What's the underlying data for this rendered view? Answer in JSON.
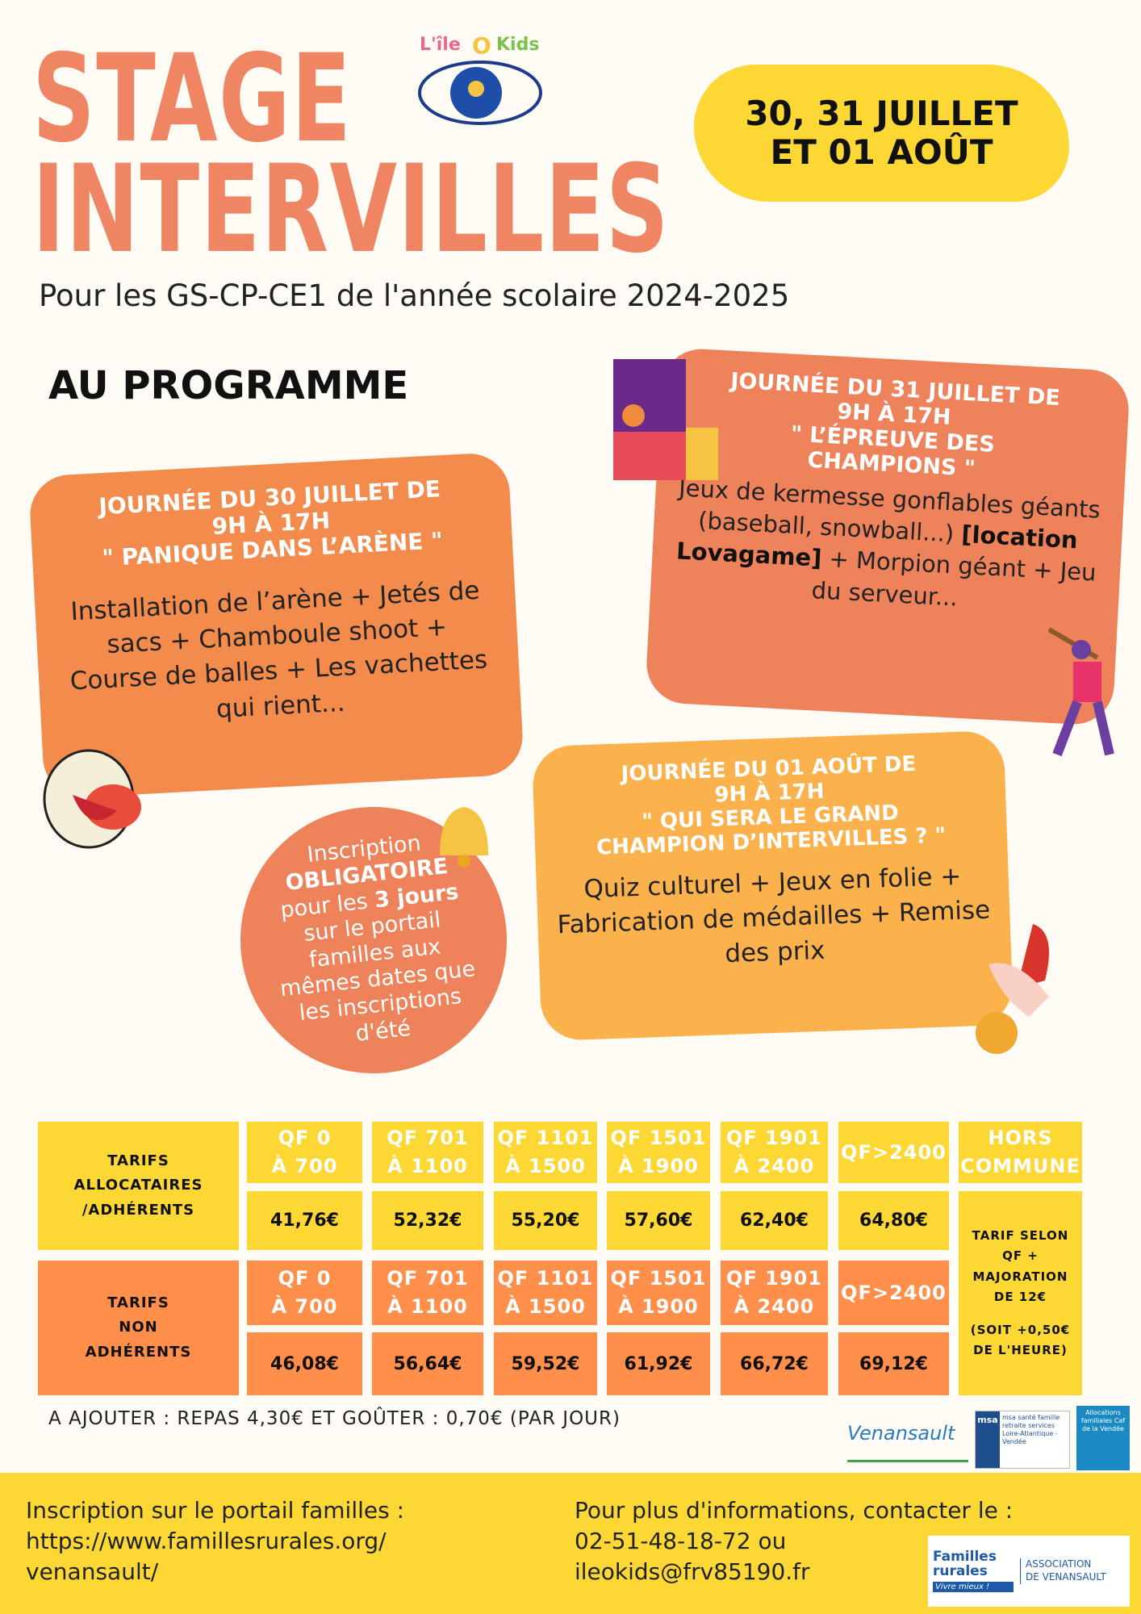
{
  "title": {
    "line1": "STAGE",
    "line2": "INTERVILLES"
  },
  "logo": {
    "text": "L'île O Kids"
  },
  "dates": {
    "line1": "30, 31 JUILLET",
    "line2": "ET 01 AOÛT"
  },
  "subtitle": "Pour les GS-CP-CE1 de l'année scolaire 2024-2025",
  "program_heading": "AU PROGRAMME",
  "days": [
    {
      "heading": [
        "JOURNÉE DU 30 JUILLET DE",
        "9H À 17H",
        "\" PANIQUE DANS L’ARÈNE \""
      ],
      "body": "Installation de l’arène + Jetés de sacs + Chamboule shoot + Course de balles + Les vachettes qui rient..."
    },
    {
      "heading": [
        "JOURNÉE DU 31 JUILLET DE",
        "9H À 17H",
        "\" L’ÉPREUVE DES",
        "CHAMPIONS \""
      ],
      "body_before": "Jeux de kermesse gonflables géants (baseball, snowball...)",
      "body_bold": "[location Lovagame]",
      "body_after": "+ Morpion géant + Jeu du serveur..."
    },
    {
      "heading": [
        "JOURNÉE DU 01 AOÛT DE",
        "9H À 17H",
        "\" QUI SERA LE GRAND",
        "CHAMPION D’INTERVILLES ?  \""
      ],
      "body": "Quiz culturel + Jeux en folie + Fabrication de médailles + Remise des prix"
    }
  ],
  "registration_note": {
    "t1": "Inscription",
    "t2": "OBLIGATOIRE",
    "t3": "pour les",
    "t4": "3 jours",
    "t5": "sur le portail familles aux mêmes dates que les inscriptions d'été"
  },
  "pricing": {
    "brackets": [
      [
        "QF 0",
        "À 700"
      ],
      [
        "QF 701",
        "À 1100"
      ],
      [
        "QF 1101",
        "À 1500"
      ],
      [
        "QF 1501",
        "À 1900"
      ],
      [
        "QF 1901",
        "À 2400"
      ],
      [
        "QF>2400"
      ]
    ],
    "rows": [
      {
        "label": [
          "TARIFS",
          "ALLOCATAIRES",
          "/ADHÉRENTS"
        ],
        "prices": [
          "41,76€",
          "52,32€",
          "55,20€",
          "57,60€",
          "62,40€",
          "64,80€"
        ]
      },
      {
        "label": [
          "TARIFS",
          "NON",
          "ADHÉRENTS"
        ],
        "prices": [
          "46,08€",
          "56,64€",
          "59,52€",
          "61,92€",
          "66,72€",
          "69,12€"
        ]
      }
    ],
    "outside": {
      "header": [
        "HORS",
        "COMMUNE"
      ],
      "text": [
        "TARIF SELON",
        "QF +",
        "MAJORATION",
        "DE 12€",
        "",
        "(SOIT +0,50€",
        "DE L'HEURE)"
      ]
    }
  },
  "note": "A AJOUTER  : REPAS 4,30€ ET GOÛTER : 0,70€  (PAR JOUR)",
  "partners": [
    "Venansault",
    "msa santé famille retraite services Loire-Atlantique - Vendée",
    "Allocations familiales Caf de la Vendée"
  ],
  "footer": {
    "left": [
      "Inscription sur le portail familles :",
      "https://www.famillesrurales.org/",
      "venansault/"
    ],
    "right": [
      "Pour plus d'informations, contacter le :",
      "02-51-48-18-72 ou",
      "ileokids@frv85190.fr"
    ],
    "logo": {
      "name": "Familles rurales",
      "tagline": "Vivre mieux !",
      "assoc": [
        "ASSOCIATION",
        "DE VENANSAULT"
      ]
    }
  },
  "colors": {
    "orange": "#EF8563",
    "yellow": "#FDD835",
    "card1": "#F28B4B",
    "card3": "#FBB24C",
    "tableOrange": "#FF8F4A"
  }
}
